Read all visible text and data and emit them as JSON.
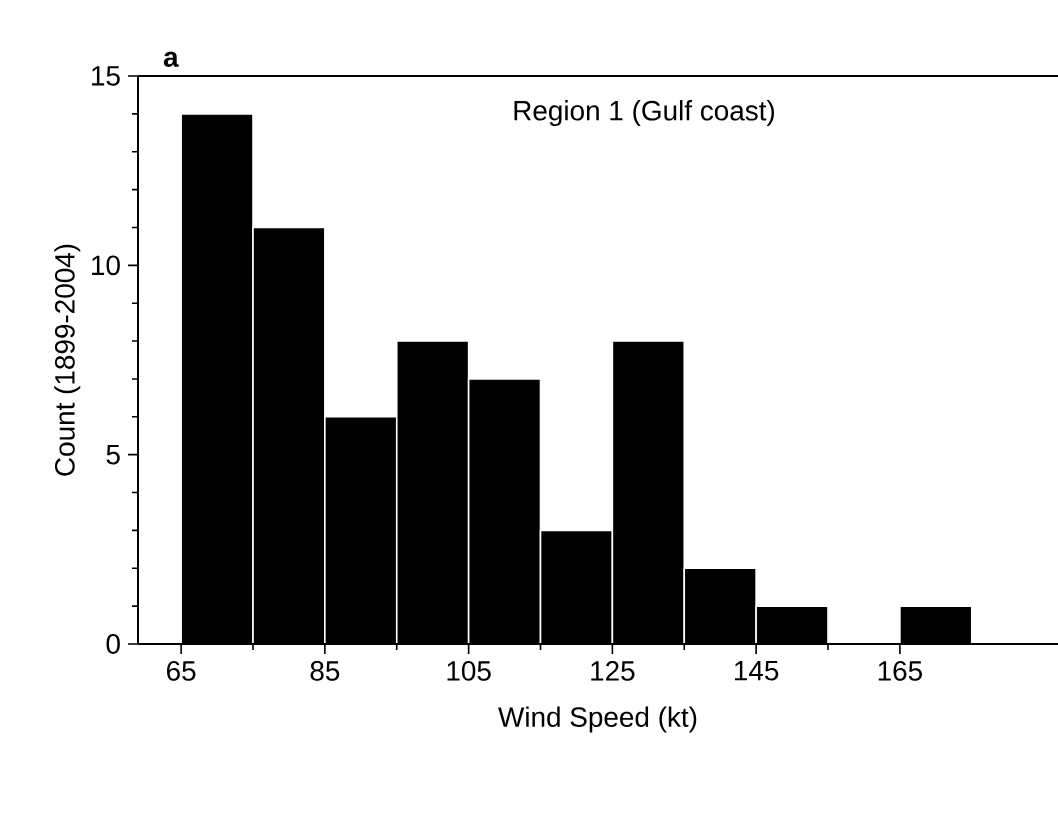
{
  "chart_data": {
    "type": "histogram",
    "title": "Region 1 (Gulf coast)",
    "xlabel": "Wind Speed (kt)",
    "ylabel": "Count (1899-2004)",
    "annotations": [
      "a"
    ],
    "bins": [
      65,
      75,
      85,
      95,
      105,
      115,
      125,
      135,
      145,
      155,
      165,
      175
    ],
    "values": [
      14,
      11,
      6,
      8,
      7,
      3,
      8,
      2,
      1,
      0,
      1
    ],
    "color": "#000000",
    "xlim": [
      59,
      187
    ],
    "ylim": [
      0,
      15
    ],
    "xticks": [
      65,
      85,
      105,
      125,
      145,
      165
    ],
    "yticks": [
      0,
      5,
      10,
      15
    ]
  }
}
